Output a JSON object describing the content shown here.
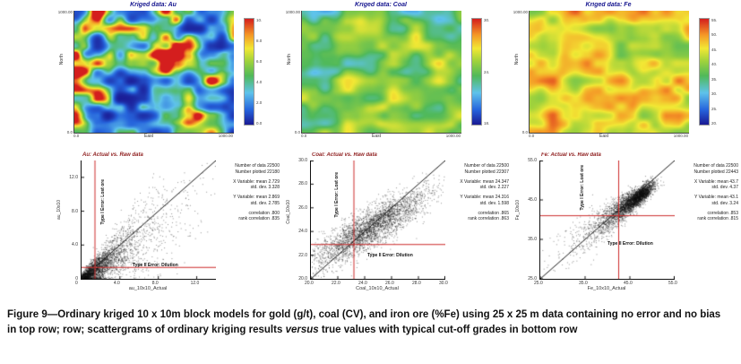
{
  "caption": {
    "part1": "Figure 9—Ordinary kriged 10 x 10m block models for gold (g/t), coal (CV), and iron ore (%Fe) using 25 x 25 m data containing no error and no bias in top row; row; scattergrams of ordinary kriging results ",
    "italic_word": "versus",
    "part2": " true values with typical cut-off grades in bottom row"
  },
  "colors": {
    "map_title": "#16168f",
    "scatter_title": "#8f1f1f",
    "cutoff_line": "#cc2a2a",
    "scatter_point": "#141414",
    "diagonal_line": "#1a1a1a"
  },
  "maps": [
    {
      "title": "Kriged data: Au",
      "xlabel": "East",
      "ylabel": "North",
      "x_min_label": "0.0",
      "x_max_label": "1000.00",
      "y_min_label": "0.0",
      "y_max_label": "1000.00",
      "colorbar_ticks": [
        "10.",
        "8.0",
        "6.0",
        "4.0",
        "2.0",
        "0.0"
      ]
    },
    {
      "title": "Kriged data: Coal",
      "xlabel": "East",
      "ylabel": "North",
      "x_min_label": "0.0",
      "x_max_label": "1000.00",
      "y_min_label": "0.0",
      "y_max_label": "1000.00",
      "colorbar_ticks": [
        "30.",
        "24.",
        "18."
      ]
    },
    {
      "title": "Kriged data: Fe",
      "xlabel": "East",
      "ylabel": "North",
      "x_min_label": "0.0",
      "x_max_label": "1000.00",
      "y_min_label": "0.0",
      "y_max_label": "1000.00",
      "colorbar_ticks": [
        "55.",
        "50.",
        "45.",
        "40.",
        "35.",
        "30.",
        "25.",
        "20."
      ]
    }
  ],
  "scatters": [
    {
      "title": "Au: Actual vs. Raw data",
      "xlabel": "au_10x10_Actual",
      "ylabel": "au_10x10",
      "range": [
        0,
        14
      ],
      "tick_labels": [
        "0",
        "4.0",
        "8.0",
        "12.0"
      ],
      "tick_values": [
        0,
        4,
        8,
        12
      ],
      "cutoff_x": 1.4,
      "cutoff_y": 1.35,
      "type1_label": "Type I Error: Lost ore",
      "type2_label": "Type II Error: Dilution",
      "stats": [
        "Number of data 22500",
        "Number plotted 22180",
        "",
        "X Variable: mean 2.729",
        "std. dev. 3.328",
        "",
        "Y Variable: mean 2.869",
        "std. dev. 2.785",
        "",
        "correlation .800",
        "rank correlation .835"
      ]
    },
    {
      "title": "Coal: Actual vs. Raw data",
      "xlabel": "Coal_10x10_Actual",
      "ylabel": "Coal_10x10",
      "range": [
        20,
        30
      ],
      "tick_labels": [
        "20.0",
        "22.0",
        "24.0",
        "26.0",
        "28.0",
        "30.0"
      ],
      "tick_values": [
        20,
        22,
        24,
        26,
        28,
        30
      ],
      "cutoff_x": 23.2,
      "cutoff_y": 22.9,
      "type1_label": "Type I Error: Lost ore",
      "type2_label": "Type II Error: Dilution",
      "stats": [
        "Number of data 22500",
        "Number plotted 22307",
        "",
        "X Variable: mean 24.347",
        "std. dev. 2.227",
        "",
        "Y Variable: mean 24.316",
        "std. dev. 1.598",
        "",
        "correlation .865",
        "rank correlation .863"
      ]
    },
    {
      "title": "Fe: Actual vs. Raw data",
      "xlabel": "Fe_10x10_Actual",
      "ylabel": "Fe_10x10",
      "range": [
        25,
        55
      ],
      "tick_labels": [
        "25.0",
        "35.0",
        "45.0",
        "55.0"
      ],
      "tick_values": [
        25,
        35,
        45,
        55
      ],
      "cutoff_x": 42.5,
      "cutoff_y": 41.0,
      "type1_label": "Type I Error: Lost ore",
      "type2_label": "Type II Error: Dilution",
      "stats": [
        "Number of data 22500",
        "Number plotted 22443",
        "",
        "X Variable: mean 43.7",
        "std. dev. 4.37",
        "",
        "Y Variable: mean 43.1",
        "std. dev. 3.24",
        "",
        "correlation .853",
        "rank correlation .815"
      ]
    }
  ],
  "chart_data": [
    {
      "type": "heatmap",
      "title": "Kriged data: Au",
      "xlabel": "East",
      "ylabel": "North",
      "x_range": [
        0,
        1000
      ],
      "y_range": [
        0,
        1000
      ],
      "colorbar_ticks": [
        10,
        8,
        6,
        4,
        2,
        0
      ],
      "palette": "jet (blue-low to red-high)",
      "description": "Kriged gold grade (g/t): predominantly low blue field with green halos and red high-grade hotspots"
    },
    {
      "type": "heatmap",
      "title": "Kriged data: Coal",
      "xlabel": "East",
      "ylabel": "North",
      "x_range": [
        0,
        1000
      ],
      "y_range": [
        0,
        1000
      ],
      "colorbar_ticks": [
        30,
        24,
        18
      ],
      "palette": "jet (blue-low to red-high)",
      "description": "Kriged coal CV: predominantly mid-range green with scattered yellow/orange highs and blue lows"
    },
    {
      "type": "heatmap",
      "title": "Kriged data: Fe",
      "xlabel": "East",
      "ylabel": "North",
      "x_range": [
        0,
        1000
      ],
      "y_range": [
        0,
        1000
      ],
      "colorbar_ticks": [
        55,
        50,
        45,
        40,
        35,
        30,
        25,
        20
      ],
      "palette": "jet (blue-low to red-high)",
      "description": "Kriged iron grade (%Fe): predominantly yellow/orange high-grade field with green patches"
    },
    {
      "type": "scatter",
      "title": "Au: Actual vs. Raw data",
      "xlabel": "au_10x10_Actual",
      "ylabel": "au_10x10",
      "x_range": [
        0,
        14
      ],
      "y_range": [
        0,
        14
      ],
      "diagonal": true,
      "cutoff_x": 1.4,
      "cutoff_y": 1.35,
      "stats": {
        "n_data": 22500,
        "n_plotted": 22180,
        "x_mean": 2.729,
        "x_sd": 3.328,
        "y_mean": 2.869,
        "y_sd": 2.785,
        "correlation": 0.8,
        "rank_correlation": 0.835
      },
      "description": "Fan-shaped cloud dense at origin, spreading along 45-degree line"
    },
    {
      "type": "scatter",
      "title": "Coal: Actual vs. Raw data",
      "xlabel": "Coal_10x10_Actual",
      "ylabel": "Coal_10x10",
      "x_range": [
        20,
        30
      ],
      "y_range": [
        20,
        30
      ],
      "diagonal": true,
      "cutoff_x": 23.2,
      "cutoff_y": 22.9,
      "stats": {
        "n_data": 22500,
        "n_plotted": 22307,
        "x_mean": 24.347,
        "x_sd": 2.227,
        "y_mean": 24.316,
        "y_sd": 1.598,
        "correlation": 0.865,
        "rank_correlation": 0.863
      },
      "description": "Elliptical gaussian cloud centered near (24.3, 24.3) along the diagonal"
    },
    {
      "type": "scatter",
      "title": "Fe: Actual vs. Raw data",
      "xlabel": "Fe_10x10_Actual",
      "ylabel": "Fe_10x10",
      "x_range": [
        25,
        55
      ],
      "y_range": [
        25,
        55
      ],
      "diagonal": true,
      "cutoff_x": 42.5,
      "cutoff_y": 41.0,
      "stats": {
        "n_data": 22500,
        "n_plotted": 22443,
        "x_mean": 43.7,
        "x_sd": 4.37,
        "y_mean": 43.1,
        "y_sd": 3.24,
        "correlation": 0.853,
        "rank_correlation": 0.815
      },
      "description": "Dense dark blob in upper right near (46,46) with sparse tail toward lower left"
    }
  ]
}
